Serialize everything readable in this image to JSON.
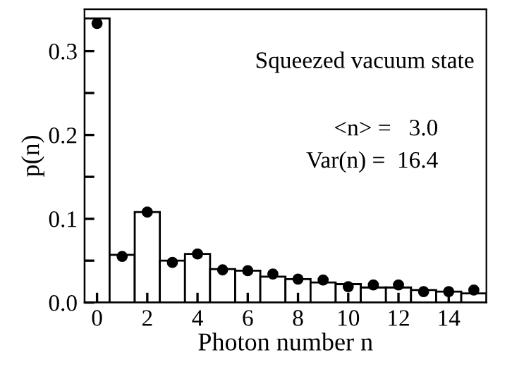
{
  "chart_data": {
    "type": "bar",
    "xlabel": "Photon number n",
    "ylabel": "p(n)",
    "x": [
      0,
      1,
      2,
      3,
      4,
      5,
      6,
      7,
      8,
      9,
      10,
      11,
      12,
      13,
      14,
      15
    ],
    "series": [
      {
        "color": "#ffffff",
        "values": [
          0.339,
          0.057,
          0.108,
          0.05,
          0.058,
          0.04,
          0.038,
          0.031,
          0.028,
          0.024,
          0.022,
          0.018,
          0.018,
          0.015,
          0.013,
          0.011
        ]
      },
      {
        "type": "scatter",
        "color": "#000000",
        "marker": "circle",
        "values": [
          0.333,
          0.055,
          0.108,
          0.048,
          0.058,
          0.039,
          0.038,
          0.034,
          0.028,
          0.027,
          0.019,
          0.021,
          0.021,
          0.013,
          0.013,
          0.015
        ]
      }
    ],
    "xlim": [
      -0.5,
      15.5
    ],
    "ylim": [
      0,
      0.35
    ],
    "xticks": [
      0,
      2,
      4,
      6,
      8,
      10,
      12,
      14
    ],
    "yticks": [
      {
        "value": 0,
        "label": "0.0"
      },
      {
        "value": 0.05,
        "label": null
      },
      0.1,
      {
        "value": 0.15,
        "label": null
      },
      0.2,
      {
        "value": 0.25,
        "label": null
      },
      0.3
    ],
    "annotations": [
      "Squeezed vacuum state",
      "<n> =   3.0",
      "Var(n) =  16.4"
    ],
    "grid": false,
    "legend": false
  }
}
